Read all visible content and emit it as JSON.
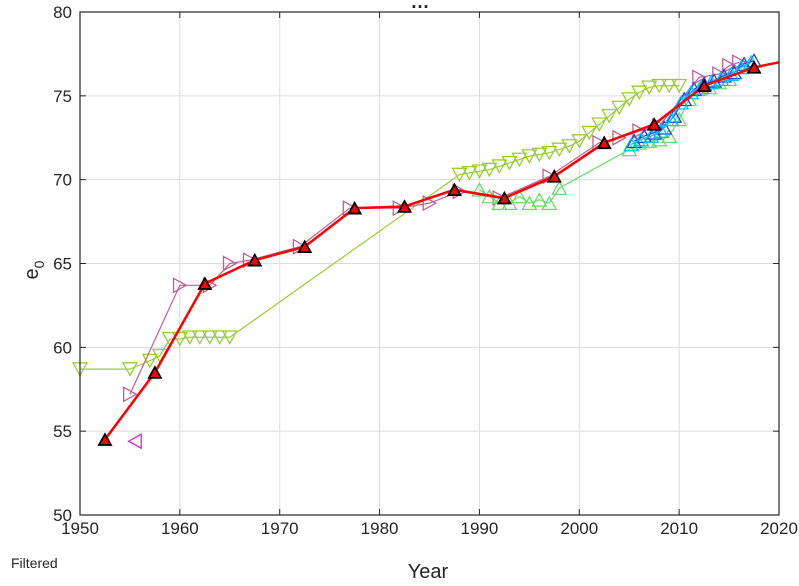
{
  "chart_data": {
    "type": "line",
    "title": "…",
    "footnote": "Filtered",
    "xlabel": "Year",
    "ylabel": "e",
    "ylabel_subscript": "0",
    "xlim": [
      1950,
      2020
    ],
    "ylim": [
      50,
      80
    ],
    "xticks": [
      1950,
      1960,
      1970,
      1980,
      1990,
      2000,
      2010,
      2020
    ],
    "yticks": [
      50,
      55,
      60,
      65,
      70,
      75,
      80
    ],
    "grid": true,
    "series": [
      {
        "color": "#9ACD32",
        "marker": "triangle-down",
        "x": [
          1950,
          1955,
          1957,
          1958,
          1959,
          1960,
          1961,
          1962,
          1963,
          1964,
          1965,
          1988,
          1989,
          1990,
          1991,
          1992,
          1993,
          1994,
          1995,
          1996,
          1997,
          1998,
          1999,
          2000,
          2001,
          2002,
          2003,
          2004,
          2005,
          2006,
          2007,
          2008,
          2009,
          2010
        ],
        "y": [
          58.7,
          58.7,
          59.2,
          59.5,
          60.5,
          60.5,
          60.6,
          60.6,
          60.6,
          60.6,
          60.6,
          70.3,
          70.4,
          70.5,
          70.6,
          70.8,
          71.0,
          71.2,
          71.4,
          71.5,
          71.6,
          71.8,
          72.0,
          72.3,
          72.8,
          73.3,
          73.8,
          74.3,
          74.8,
          75.2,
          75.5,
          75.6,
          75.6,
          75.6
        ]
      },
      {
        "color": "#C06090",
        "marker": "triangle-right",
        "x": [
          1955,
          1960,
          1963,
          1965,
          1967,
          1972,
          1977,
          1982,
          1985,
          1988,
          1992,
          1997,
          2002,
          2004,
          2006,
          2008,
          2012,
          2014,
          2015,
          2016
        ],
        "y": [
          57.2,
          63.7,
          63.7,
          65.0,
          65.2,
          66.0,
          68.3,
          68.3,
          68.6,
          69.3,
          68.9,
          70.2,
          72.2,
          72.5,
          72.9,
          73.2,
          76.1,
          76.3,
          76.8,
          77.0
        ]
      },
      {
        "color": "#E020E0",
        "marker": "triangle-left",
        "x": [
          1955.5
        ],
        "y": [
          54.4
        ]
      },
      {
        "color": "#66DD66",
        "marker": "triangle-up",
        "x": [
          1990,
          1991,
          1992,
          1993,
          1994,
          1995,
          1996,
          1997,
          1998,
          2005,
          2006,
          2007,
          2008,
          2009,
          2010,
          2011,
          2012,
          2013,
          2014,
          2015
        ],
        "y": [
          69.4,
          69.0,
          68.6,
          68.6,
          69.0,
          68.6,
          68.8,
          68.6,
          69.5,
          71.8,
          72.2,
          72.3,
          72.4,
          72.6,
          73.6,
          74.8,
          75.4,
          75.5,
          75.8,
          76.0
        ]
      },
      {
        "color": "#2244DD",
        "marker": "triangle-up",
        "x": [
          2005.5,
          2006.5,
          2007.5,
          2008.5,
          2009.5,
          2010.5,
          2011.5,
          2012.5,
          2013.5,
          2014.5,
          2015.5,
          2016.5,
          2017.5
        ],
        "y": [
          72.3,
          72.6,
          72.8,
          73.1,
          73.8,
          74.8,
          75.4,
          75.7,
          75.9,
          76.2,
          76.4,
          76.9,
          77.1
        ]
      },
      {
        "color": "#00BFFF",
        "marker": "triangle-up",
        "x": [
          2005.2,
          2006.2,
          2007.2,
          2008.2,
          2009.2,
          2010.2,
          2011.2,
          2012.2,
          2013.2,
          2014.2,
          2015.2,
          2016.2,
          2017.2
        ],
        "y": [
          72.1,
          72.4,
          72.6,
          72.9,
          73.6,
          74.6,
          75.2,
          75.5,
          75.8,
          76.0,
          76.3,
          76.7,
          77.0
        ]
      },
      {
        "color": "#FF0000",
        "line_width": 2.5,
        "marker": "triangle-up",
        "marker_face": "#FF0000",
        "marker_edge": "#000000",
        "x": [
          1952.5,
          1957.5,
          1962.5,
          1967.5,
          1972.5,
          1977.5,
          1982.5,
          1987.5,
          1992.5,
          1997.5,
          2002.5,
          2007.5,
          2012.5,
          2017.5
        ],
        "y": [
          54.5,
          58.5,
          63.8,
          65.2,
          66.0,
          68.3,
          68.4,
          69.4,
          68.9,
          70.2,
          72.2,
          73.3,
          75.6,
          76.7
        ],
        "extend_to": [
          2020,
          77.0
        ]
      }
    ]
  }
}
